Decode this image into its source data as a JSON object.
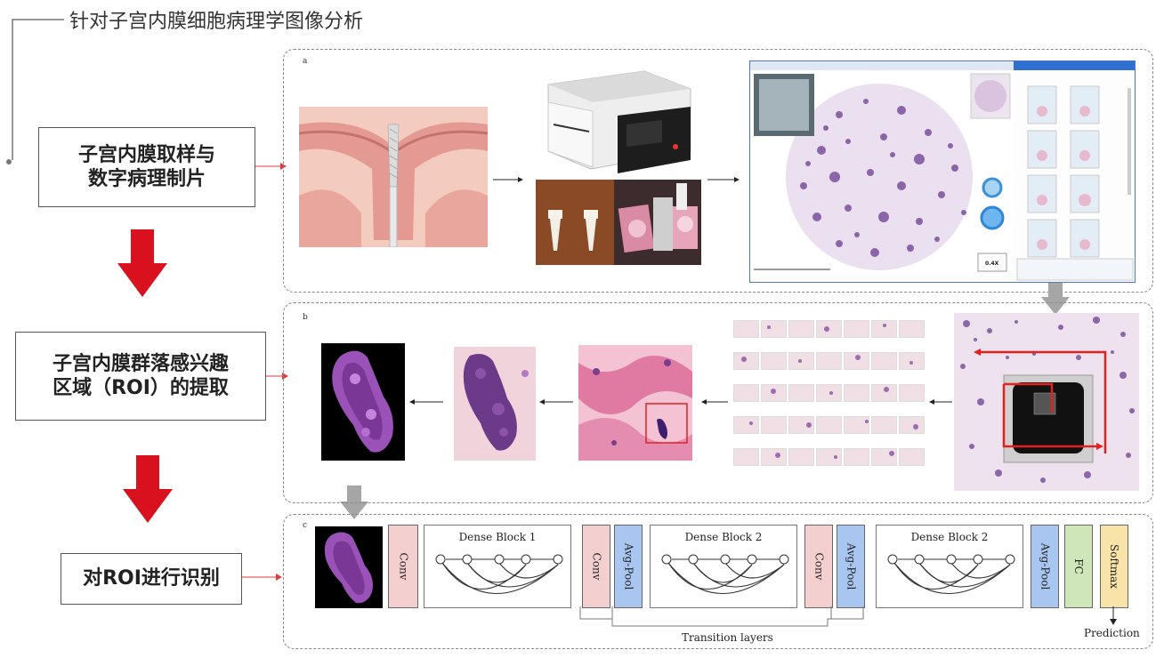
{
  "title": "针对子宫内膜细胞病理学图像分析",
  "steps": [
    {
      "line1": "子宫内膜取样与",
      "line2": "数字病理制片"
    },
    {
      "line1": "子宫内膜群落感兴趣",
      "line2": "区域（ROI）的提取"
    },
    {
      "line1": "对ROI进行识别",
      "line2": ""
    }
  ],
  "panels": {
    "a": "a",
    "b": "b",
    "c": "c"
  },
  "viewer": {
    "zoom": "0.4X"
  },
  "network": {
    "conv": "Conv",
    "avgpool": "Avg-Pool",
    "fc": "FC",
    "softmax": "Softmax",
    "dense_blocks": [
      "Dense Block 1",
      "Dense Block 2",
      "Dense Block 2"
    ],
    "transition": "Transition layers",
    "prediction": "Prediction"
  },
  "colors": {
    "conv": "#f3cfcf",
    "avgpool": "#a9c6f0",
    "fc": "#cfe6b8",
    "softmax": "#f8e3a8",
    "arrow_red": "#d9101e",
    "arrow_gray": "#a6a6a6"
  }
}
